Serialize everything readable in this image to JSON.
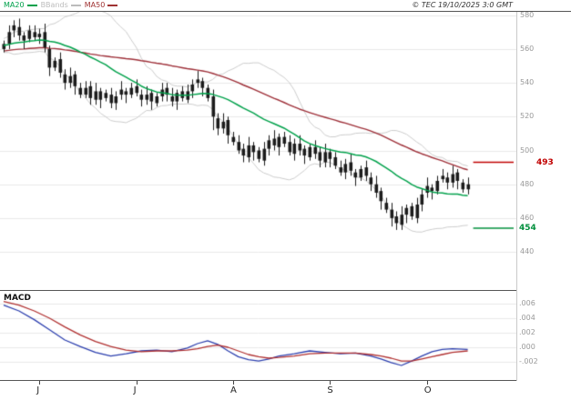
{
  "header": {
    "legend": [
      {
        "label": "MA20",
        "color": "#00a14b"
      },
      {
        "label": "BBands",
        "color": "#bcbcbc"
      },
      {
        "label": "MA50",
        "color": "#a03333"
      }
    ],
    "copyright": "© TEC 19/10/2025 3:0 GMT"
  },
  "chart_data": {
    "type": "candlestick",
    "title": "",
    "x_axis": {
      "month_ticks": [
        {
          "label": "J",
          "index": 7
        },
        {
          "label": "J",
          "index": 26
        },
        {
          "label": "A",
          "index": 45
        },
        {
          "label": "S",
          "index": 64
        },
        {
          "label": "O",
          "index": 83
        }
      ]
    },
    "price_panel": {
      "ylim": [
        418,
        582
      ],
      "yticks": [
        580,
        560,
        540,
        520,
        500,
        480,
        460,
        440
      ],
      "warmup_closes": [
        548,
        550,
        549,
        551,
        553,
        552,
        554,
        556,
        555,
        557,
        558,
        557,
        559,
        560,
        559,
        561,
        562,
        561,
        563,
        562,
        561,
        563,
        564,
        563,
        565,
        564,
        563,
        565,
        564,
        562
      ],
      "closes": [
        563,
        570,
        574,
        568,
        565,
        571,
        567,
        569,
        561,
        549,
        553,
        546,
        540,
        544,
        538,
        533,
        537,
        531,
        535,
        530,
        534,
        528,
        532,
        536,
        533,
        537,
        534,
        530,
        533,
        529,
        532,
        536,
        533,
        529,
        534,
        531,
        535,
        539,
        542,
        537,
        531,
        520,
        513,
        517,
        509,
        505,
        500,
        497,
        503,
        499,
        495,
        501,
        506,
        503,
        508,
        504,
        499,
        504,
        500,
        497,
        502,
        498,
        494,
        499,
        495,
        491,
        487,
        492,
        488,
        484,
        489,
        485,
        480,
        475,
        470,
        465,
        460,
        457,
        462,
        466,
        461,
        468,
        474,
        479,
        476,
        482,
        485,
        481,
        486,
        482,
        477,
        480
      ],
      "low_overrides": {
        "41": 512,
        "76": 455,
        "77": 453
      },
      "indicators": [
        {
          "name": "MA20",
          "window": 20,
          "color": "#00a14b"
        },
        {
          "name": "MA50",
          "window": 50,
          "color": "#9e3039"
        },
        {
          "name": "BBands",
          "window": 20,
          "mult": 2,
          "color": "#cccccc"
        }
      ],
      "levels": [
        {
          "label": "493",
          "value": 493,
          "color": "#c00000"
        },
        {
          "label": "454",
          "value": 454,
          "color": "#008f3c"
        }
      ]
    },
    "macd_panel": {
      "title": "MACD",
      "ylim": [
        -0.0045,
        0.0075
      ],
      "yticks": [
        {
          "label": ".006",
          "value": 0.006
        },
        {
          "label": ".004",
          "value": 0.004
        },
        {
          "label": ".002",
          "value": 0.002
        },
        {
          "label": ".000",
          "value": 0.0
        },
        {
          "label": "-.002",
          "value": -0.002
        }
      ],
      "series": [
        {
          "name": "macd",
          "color": "#2c3fae",
          "points": [
            [
              0,
              0.0058
            ],
            [
              3,
              0.005
            ],
            [
              6,
              0.0038
            ],
            [
              9,
              0.0024
            ],
            [
              12,
              0.001
            ],
            [
              15,
              0.0001
            ],
            [
              18,
              -0.0007
            ],
            [
              21,
              -0.0012
            ],
            [
              24,
              -0.0009
            ],
            [
              27,
              -0.0005
            ],
            [
              30,
              -0.0004
            ],
            [
              33,
              -0.0006
            ],
            [
              36,
              -0.0001
            ],
            [
              38,
              0.0005
            ],
            [
              40,
              0.0009
            ],
            [
              42,
              0.0004
            ],
            [
              44,
              -0.0005
            ],
            [
              46,
              -0.0013
            ],
            [
              48,
              -0.0017
            ],
            [
              50,
              -0.0019
            ],
            [
              52,
              -0.0016
            ],
            [
              54,
              -0.0012
            ],
            [
              57,
              -0.0009
            ],
            [
              60,
              -0.0005
            ],
            [
              63,
              -0.0007
            ],
            [
              66,
              -0.0009
            ],
            [
              69,
              -0.0008
            ],
            [
              72,
              -0.0012
            ],
            [
              74,
              -0.0016
            ],
            [
              76,
              -0.0021
            ],
            [
              78,
              -0.0025
            ],
            [
              80,
              -0.0019
            ],
            [
              82,
              -0.0012
            ],
            [
              84,
              -0.0006
            ],
            [
              86,
              -0.0003
            ],
            [
              88,
              -0.0002
            ],
            [
              91,
              -0.0003
            ]
          ]
        },
        {
          "name": "signal",
          "color": "#b03030",
          "points": [
            [
              0,
              0.0063
            ],
            [
              3,
              0.0058
            ],
            [
              6,
              0.005
            ],
            [
              9,
              0.004
            ],
            [
              12,
              0.0028
            ],
            [
              15,
              0.0017
            ],
            [
              18,
              0.0008
            ],
            [
              21,
              0.0001
            ],
            [
              24,
              -0.0004
            ],
            [
              27,
              -0.0006
            ],
            [
              30,
              -0.0005
            ],
            [
              33,
              -0.0005
            ],
            [
              36,
              -0.0004
            ],
            [
              38,
              -0.0002
            ],
            [
              40,
              0.0001
            ],
            [
              42,
              0.0003
            ],
            [
              44,
              0.0
            ],
            [
              46,
              -0.0005
            ],
            [
              48,
              -0.001
            ],
            [
              50,
              -0.0013
            ],
            [
              52,
              -0.0015
            ],
            [
              54,
              -0.0014
            ],
            [
              57,
              -0.0012
            ],
            [
              60,
              -0.0009
            ],
            [
              63,
              -0.0008
            ],
            [
              66,
              -0.0008
            ],
            [
              69,
              -0.0008
            ],
            [
              72,
              -0.001
            ],
            [
              74,
              -0.0012
            ],
            [
              76,
              -0.0015
            ],
            [
              78,
              -0.0019
            ],
            [
              80,
              -0.0019
            ],
            [
              82,
              -0.0016
            ],
            [
              84,
              -0.0013
            ],
            [
              86,
              -0.001
            ],
            [
              88,
              -0.0007
            ],
            [
              91,
              -0.0005
            ]
          ]
        }
      ]
    }
  }
}
